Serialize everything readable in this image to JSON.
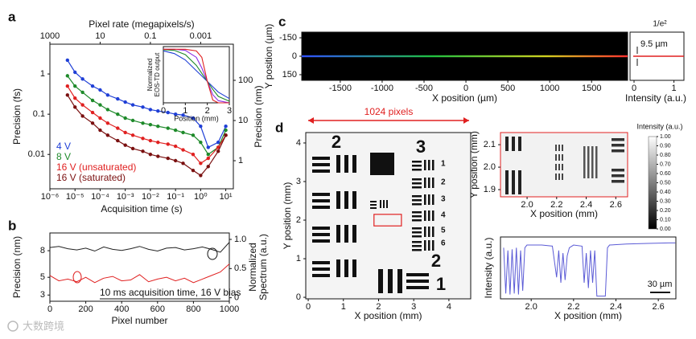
{
  "panel_labels": [
    "a",
    "b",
    "c",
    "d"
  ],
  "watermark": "大数跨境",
  "chart_data": [
    {
      "type": "line",
      "xlabel": "Acquisition time (s)",
      "ylabel": "Precision (fs)",
      "y2label": "Precision (nm)",
      "x2label": "Pixel rate (megapixels/s)",
      "log_x": true,
      "log_y": true,
      "xlim": [
        1e-06,
        20
      ],
      "ylim": [
        0.0014,
        5.5
      ],
      "y2lim": [
        0.2,
        794
      ],
      "x2lim": [
        1000,
        5e-05
      ],
      "xticks": [
        {
          "value": 1e-06,
          "label": "10⁻⁶"
        },
        {
          "value": 1e-05,
          "label": "10⁻⁵"
        },
        {
          "value": 0.0001,
          "label": "10⁻⁴"
        },
        {
          "value": 0.001,
          "label": "10⁻³"
        },
        {
          "value": 0.01,
          "label": "10⁻²"
        },
        {
          "value": 0.1,
          "label": "10⁻¹"
        },
        {
          "value": 1,
          "label": "10⁰"
        },
        {
          "value": 10,
          "label": "10¹"
        }
      ],
      "yticks": [
        0.01,
        0.1,
        1
      ],
      "y2ticks": [
        1,
        10,
        100
      ],
      "x2ticks": [
        1000,
        10,
        0.1,
        0.001
      ],
      "legend": "lower left",
      "x": [
        5e-06,
        1e-05,
        2e-05,
        5e-05,
        0.0001,
        0.0002,
        0.0005,
        0.001,
        0.002,
        0.005,
        0.01,
        0.02,
        0.05,
        0.1,
        0.2,
        0.5,
        1,
        2,
        5,
        10
      ],
      "series": [
        {
          "name": "4 V",
          "color": "#1f3fd6",
          "values": [
            2.2,
            1.1,
            0.75,
            0.5,
            0.4,
            0.3,
            0.24,
            0.2,
            0.17,
            0.15,
            0.13,
            0.12,
            0.11,
            0.1,
            0.095,
            0.08,
            0.05,
            0.015,
            0.02,
            0.05
          ]
        },
        {
          "name": "8 V",
          "color": "#1e8a2a",
          "values": [
            0.9,
            0.5,
            0.35,
            0.22,
            0.17,
            0.13,
            0.1,
            0.08,
            0.07,
            0.06,
            0.055,
            0.05,
            0.045,
            0.04,
            0.035,
            0.03,
            0.02,
            0.01,
            0.015,
            0.04
          ]
        },
        {
          "name": "16 V (unsaturated)",
          "color": "#e02020",
          "values": [
            0.5,
            0.25,
            0.17,
            0.11,
            0.08,
            0.06,
            0.045,
            0.035,
            0.03,
            0.025,
            0.022,
            0.02,
            0.018,
            0.016,
            0.013,
            0.01,
            0.006,
            0.008,
            0.015,
            0.03
          ]
        },
        {
          "name": "16 V (saturated)",
          "color": "#7a1010",
          "values": [
            0.3,
            0.15,
            0.09,
            0.06,
            0.04,
            0.03,
            0.022,
            0.017,
            0.014,
            0.012,
            0.01,
            0.009,
            0.008,
            0.007,
            0.006,
            0.004,
            0.003,
            0.005,
            0.012,
            0.03
          ]
        }
      ]
    },
    {
      "type": "line",
      "xlabel": "Position (mm)",
      "ylabel": [
        "Normalized",
        "EOS-TD output"
      ],
      "xlim": [
        0,
        3
      ],
      "ylim": [
        0,
        1.05
      ],
      "xticks": [
        0,
        1,
        2,
        3
      ],
      "x": [
        0,
        0.5,
        1,
        1.5,
        1.75,
        2,
        2.25,
        2.5,
        3
      ],
      "series": [
        {
          "color": "#1f3fd6",
          "values": [
            0.97,
            0.92,
            0.8,
            0.6,
            0.5,
            0.4,
            0.3,
            0.2,
            0.08
          ]
        },
        {
          "color": "#1e8a2a",
          "values": [
            0.99,
            0.98,
            0.9,
            0.7,
            0.55,
            0.4,
            0.25,
            0.12,
            0.03
          ]
        },
        {
          "color": "#8a2be2",
          "values": [
            1,
            1,
            0.98,
            0.85,
            0.65,
            0.4,
            0.15,
            0.04,
            0
          ]
        },
        {
          "color": "#e02020",
          "values": [
            1,
            1,
            1,
            0.97,
            0.85,
            0.4,
            0.05,
            0,
            0
          ]
        }
      ]
    },
    {
      "type": "line",
      "xlabel": "Pixel number",
      "ylabel": "Precision (nm)",
      "y2label": [
        "Normalized",
        "Spectrum (a.u.)"
      ],
      "annotation": "10 ms acquisition time, 16 V bias",
      "xlim": [
        0,
        1000
      ],
      "ylim": [
        2.3,
        10
      ],
      "y2lim": [
        -0.06,
        1.11
      ],
      "xticks": [
        0,
        200,
        400,
        600,
        800,
        1000
      ],
      "yticks": [
        3,
        5,
        8
      ],
      "y2ticks": [
        0,
        0.5,
        {
          "value": 1,
          "label": "1.0"
        }
      ],
      "x": [
        0,
        50,
        100,
        150,
        200,
        250,
        300,
        350,
        400,
        450,
        500,
        550,
        600,
        650,
        700,
        750,
        800,
        850,
        900,
        950,
        1000
      ],
      "series": [
        {
          "color": "#222222",
          "axis": "y2",
          "values": [
            0.86,
            0.88,
            0.84,
            0.82,
            0.85,
            0.8,
            0.87,
            0.83,
            0.81,
            0.84,
            0.88,
            0.83,
            0.8,
            0.85,
            0.86,
            0.82,
            0.84,
            0.87,
            0.83,
            0.78,
            0.95
          ]
        },
        {
          "color": "#e02020",
          "values": [
            5.2,
            4.6,
            4.8,
            4.5,
            5.0,
            4.4,
            4.9,
            5.1,
            4.6,
            4.7,
            5.3,
            4.5,
            4.8,
            5.0,
            4.6,
            4.9,
            4.4,
            4.8,
            5.2,
            5.6,
            6.5
          ]
        }
      ]
    },
    {
      "type": "image",
      "xlabel": "X position (µm)",
      "ylabel": "Y position (µm)",
      "xlim": [
        -1960,
        1930
      ],
      "ylim": [
        196,
        -196
      ],
      "xticks": [
        -1500,
        -1000,
        -500,
        0,
        500,
        1000,
        1500
      ],
      "yticks": [
        -150,
        0,
        150
      ],
      "side_xlabel": "Intensity (a.u.)",
      "side_xticks": [
        0,
        1
      ],
      "annotations": [
        "1/e²",
        "9.5 µm"
      ]
    },
    {
      "type": "image",
      "xlabel": "X position (mm)",
      "ylabel": "Y position (mm)",
      "annotation": "1024 pixels",
      "xlim": [
        -0.07,
        4.62
      ],
      "ylim": [
        -0.04,
        4.27
      ],
      "xticks": [
        0,
        1,
        2,
        3,
        4
      ],
      "yticks": [
        0,
        1,
        2,
        3,
        4
      ],
      "group_labels": [
        "2",
        "3",
        "2",
        "1"
      ],
      "element_labels": [
        "1",
        "2",
        "3",
        "4",
        "5",
        "6"
      ]
    },
    {
      "type": "image",
      "xlabel": "X position (mm)",
      "ylabel": "Y position (mm)",
      "colorbar_label": "Intensity (a.u.)",
      "xlim": [
        1.82,
        2.68
      ],
      "ylim": [
        1.868,
        2.154
      ],
      "clim": [
        0,
        1
      ],
      "xticks": [
        {
          "value": 2,
          "label": "2.0"
        },
        2.2,
        2.4,
        2.6
      ],
      "yticks": [
        1.9,
        {
          "value": 2,
          "label": "2.0"
        },
        2.1
      ],
      "cticks": [
        {
          "value": 1,
          "label": "1.00"
        },
        {
          "value": 0.9,
          "label": "0.90"
        },
        {
          "value": 0.8,
          "label": "0.80"
        },
        {
          "value": 0.7,
          "label": "0.70"
        },
        {
          "value": 0.6,
          "label": "0.60"
        },
        {
          "value": 0.5,
          "label": "0.50"
        },
        {
          "value": 0.4,
          "label": "0.40"
        },
        {
          "value": 0.3,
          "label": "0.30"
        },
        {
          "value": 0.2,
          "label": "0.20"
        },
        {
          "value": 0.1,
          "label": "0.10"
        },
        {
          "value": 0,
          "label": "0.00"
        }
      ]
    },
    {
      "type": "line",
      "xlabel": "X position (mm)",
      "ylabel": "Intensity (a.u.)",
      "scalebar": "30 µm",
      "xlim": [
        1.855,
        2.683
      ],
      "ylim": [
        0,
        1.15
      ],
      "xticks": [
        {
          "value": 2,
          "label": "2.0"
        },
        2.2,
        2.4,
        2.6
      ],
      "x": [
        1.87,
        1.88,
        1.89,
        1.9,
        1.91,
        1.92,
        1.93,
        1.94,
        1.95,
        1.96,
        1.97,
        1.98,
        2.0,
        2.05,
        2.1,
        2.12,
        2.13,
        2.14,
        2.15,
        2.16,
        2.17,
        2.18,
        2.2,
        2.24,
        2.25,
        2.26,
        2.27,
        2.28,
        2.29,
        2.3,
        2.31,
        2.33,
        2.35,
        2.36,
        2.37,
        2.45,
        2.55,
        2.65,
        2.68
      ],
      "series": [
        {
          "color": "#5b5bd6",
          "values": [
            0.95,
            0.1,
            0.9,
            0.08,
            0.92,
            0.1,
            0.95,
            0.08,
            0.9,
            0.15,
            0.95,
            1.0,
            1.0,
            1.0,
            0.98,
            0.4,
            0.9,
            0.3,
            0.85,
            0.35,
            0.8,
            0.95,
            1.0,
            0.98,
            0.3,
            0.85,
            0.2,
            0.9,
            0.3,
            0.9,
            0.05,
            0.05,
            0.05,
            0.95,
            1.0,
            1.02,
            1.03,
            1.04,
            1.04
          ]
        }
      ]
    }
  ]
}
